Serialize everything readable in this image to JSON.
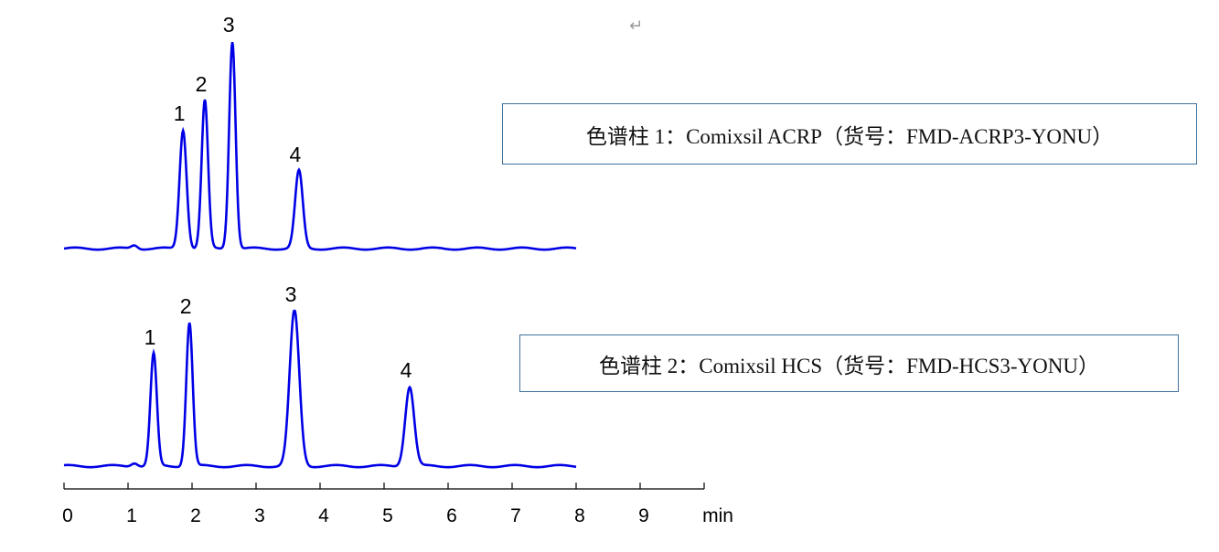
{
  "chart_data": {
    "type": "line",
    "xlabel": "min",
    "xlim": [
      0,
      10
    ],
    "x_ticks": [
      "0",
      "1",
      "2",
      "3",
      "4",
      "5",
      "6",
      "7",
      "8",
      "9"
    ],
    "grid": false,
    "line_color": "#0000e6",
    "series": [
      {
        "name": "色谱柱 1：Comixsil ACRP（货号：FMD-ACRP3-YONU）",
        "x_range": [
          0,
          8
        ],
        "peaks": [
          {
            "label": "1",
            "rt": 1.86,
            "height": 130,
            "width": 0.055
          },
          {
            "label": "2",
            "rt": 2.2,
            "height": 162,
            "width": 0.05
          },
          {
            "label": "3",
            "rt": 2.63,
            "height": 227,
            "width": 0.05
          },
          {
            "label": "4",
            "rt": 3.67,
            "height": 85,
            "width": 0.06
          }
        ]
      },
      {
        "name": "色谱柱 2：Comixsil HCS（货号：FMD-HCS3-YONU）",
        "x_range": [
          0,
          8
        ],
        "peaks": [
          {
            "label": "1",
            "rt": 1.4,
            "height": 123,
            "width": 0.05
          },
          {
            "label": "2",
            "rt": 1.96,
            "height": 157,
            "width": 0.05
          },
          {
            "label": "3",
            "rt": 3.6,
            "height": 170,
            "width": 0.075
          },
          {
            "label": "4",
            "rt": 5.4,
            "height": 87,
            "width": 0.07
          }
        ]
      }
    ]
  }
}
